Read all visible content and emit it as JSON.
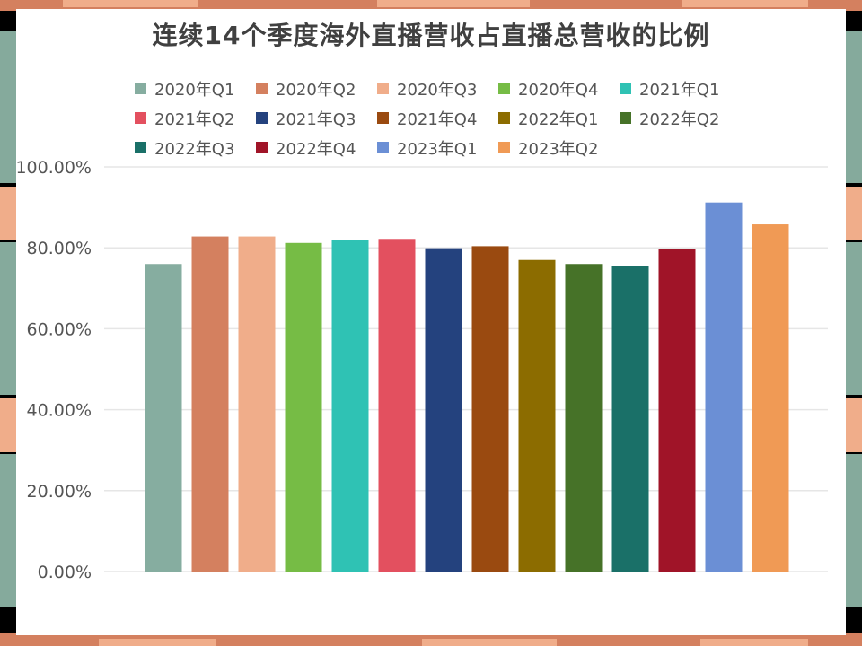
{
  "chart_data": {
    "type": "bar",
    "title": "连续14个季度海外直播营收占直播总营收的比例",
    "xlabel": "",
    "ylabel": "",
    "ylim": [
      0,
      100
    ],
    "y_ticks": [
      "0.00%",
      "20.00%",
      "40.00%",
      "60.00%",
      "80.00%",
      "100.00%"
    ],
    "grid": true,
    "legend_position": "top",
    "categories": [
      "2020年Q1",
      "2020年Q2",
      "2020年Q3",
      "2020年Q4",
      "2021年Q1",
      "2021年Q2",
      "2021年Q3",
      "2021年Q4",
      "2022年Q1",
      "2022年Q2",
      "2022年Q3",
      "2022年Q4",
      "2023年Q1",
      "2023年Q2"
    ],
    "values": [
      76.0,
      82.8,
      82.8,
      81.2,
      82.0,
      82.2,
      79.9,
      80.4,
      77.0,
      76.0,
      75.5,
      79.6,
      91.2,
      85.8
    ],
    "colors": [
      "#86ada0",
      "#d4805f",
      "#f0ad8a",
      "#76bc45",
      "#2fc2b4",
      "#e3505f",
      "#24427e",
      "#9a4a10",
      "#8c6c00",
      "#467228",
      "#1a7068",
      "#a01428",
      "#6b8fd5",
      "#f09a55"
    ]
  },
  "frame_colors": {
    "side": "#85aa9c",
    "edge": "#d4805f",
    "accent": "#f0ad8a"
  }
}
